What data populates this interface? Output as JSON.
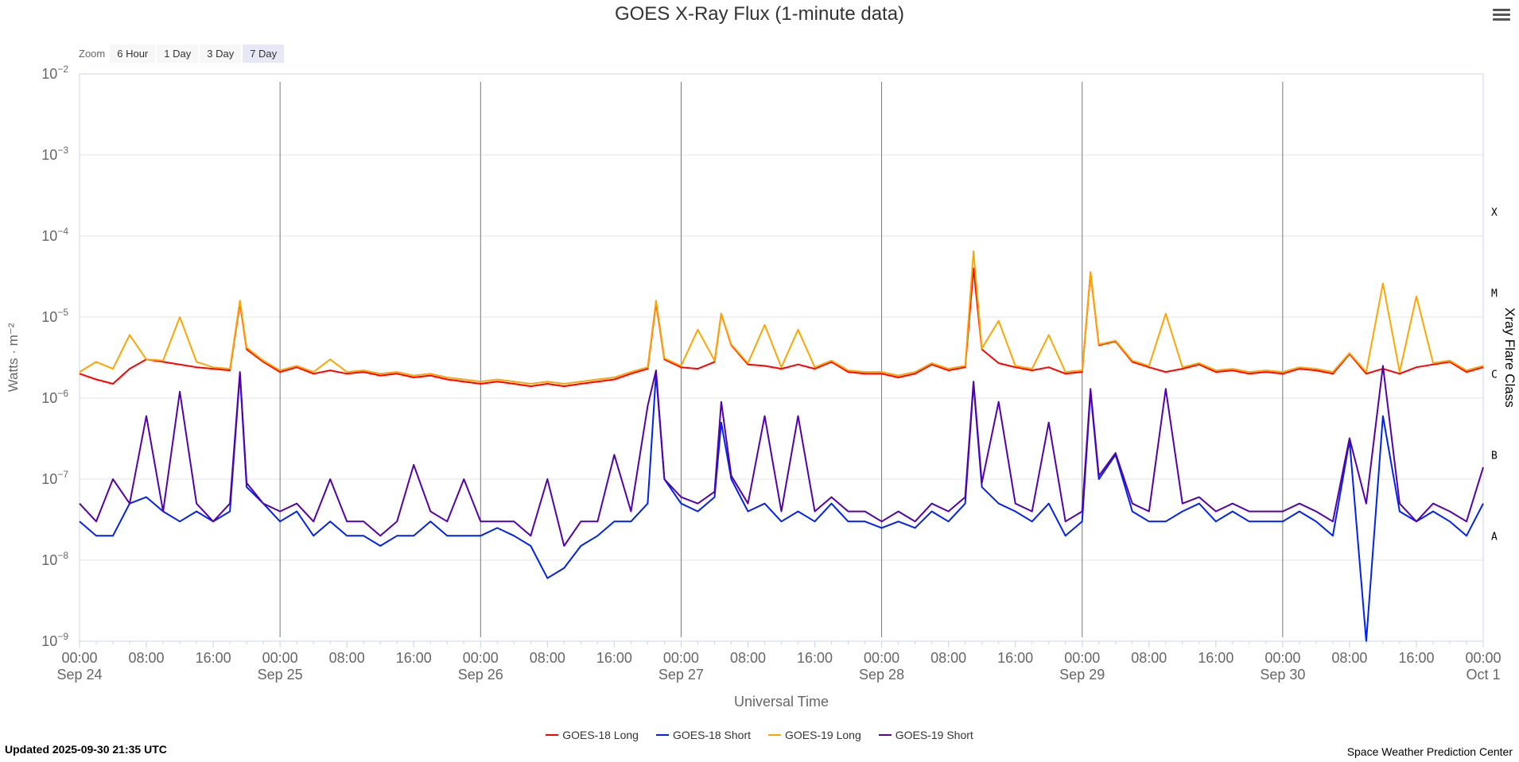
{
  "page": {
    "title": "GOES X-Ray Flux (1-minute data)",
    "updated": "Updated 2025-09-30 21:35 UTC",
    "credit": "Space Weather Prediction Center"
  },
  "zoom": {
    "label": "Zoom",
    "buttons": [
      "6 Hour",
      "1 Day",
      "3 Day",
      "7 Day"
    ],
    "selected": "7 Day"
  },
  "chart_data": {
    "type": "line",
    "title": "GOES X-Ray Flux (1-minute data)",
    "xlabel": "Universal Time",
    "ylabel": "Watts · m⁻²",
    "y2label": "Xray Flare Class",
    "yscale": "log",
    "ylim": [
      1e-09,
      0.01
    ],
    "xlim_hours": [
      0,
      168
    ],
    "y_ticks": [
      {
        "base": "10",
        "exp": "−2",
        "value": 0.01
      },
      {
        "base": "10",
        "exp": "−3",
        "value": 0.001
      },
      {
        "base": "10",
        "exp": "−4",
        "value": 0.0001
      },
      {
        "base": "10",
        "exp": "−5",
        "value": 1e-05
      },
      {
        "base": "10",
        "exp": "−6",
        "value": 1e-06
      },
      {
        "base": "10",
        "exp": "−7",
        "value": 1e-07
      },
      {
        "base": "10",
        "exp": "−8",
        "value": 1e-08
      },
      {
        "base": "10",
        "exp": "−9",
        "value": 1e-09
      }
    ],
    "flare_classes": [
      {
        "label": "X",
        "value": 0.0002
      },
      {
        "label": "M",
        "value": 2e-05
      },
      {
        "label": "C",
        "value": 2e-06
      },
      {
        "label": "B",
        "value": 2e-07
      },
      {
        "label": "A",
        "value": 2e-08
      }
    ],
    "x_ticks": [
      {
        "h": 0,
        "time": "00:00",
        "date": "Sep 24"
      },
      {
        "h": 8,
        "time": "08:00",
        "date": ""
      },
      {
        "h": 16,
        "time": "16:00",
        "date": ""
      },
      {
        "h": 24,
        "time": "00:00",
        "date": "Sep 25"
      },
      {
        "h": 32,
        "time": "08:00",
        "date": ""
      },
      {
        "h": 40,
        "time": "16:00",
        "date": ""
      },
      {
        "h": 48,
        "time": "00:00",
        "date": "Sep 26"
      },
      {
        "h": 56,
        "time": "08:00",
        "date": ""
      },
      {
        "h": 64,
        "time": "16:00",
        "date": ""
      },
      {
        "h": 72,
        "time": "00:00",
        "date": "Sep 27"
      },
      {
        "h": 80,
        "time": "08:00",
        "date": ""
      },
      {
        "h": 88,
        "time": "16:00",
        "date": ""
      },
      {
        "h": 96,
        "time": "00:00",
        "date": "Sep 28"
      },
      {
        "h": 104,
        "time": "08:00",
        "date": ""
      },
      {
        "h": 112,
        "time": "16:00",
        "date": ""
      },
      {
        "h": 120,
        "time": "00:00",
        "date": "Sep 29"
      },
      {
        "h": 128,
        "time": "08:00",
        "date": ""
      },
      {
        "h": 136,
        "time": "16:00",
        "date": ""
      },
      {
        "h": 144,
        "time": "00:00",
        "date": "Sep 30"
      },
      {
        "h": 152,
        "time": "08:00",
        "date": ""
      },
      {
        "h": 160,
        "time": "16:00",
        "date": ""
      },
      {
        "h": 168,
        "time": "00:00",
        "date": "Oct 1"
      }
    ],
    "day_lines_h": [
      24,
      48,
      72,
      96,
      120,
      144
    ],
    "series": [
      {
        "name": "GOES-18 Long",
        "color": "#ff0000",
        "x": [
          0,
          2,
          4,
          6,
          8,
          10,
          12,
          14,
          16,
          18,
          19.2,
          20,
          22,
          24,
          26,
          28,
          30,
          32,
          34,
          36,
          38,
          40,
          42,
          44,
          46,
          48,
          50,
          52,
          54,
          56,
          58,
          60,
          62,
          64,
          66,
          68,
          69,
          70,
          72,
          74,
          76,
          76.8,
          78,
          80,
          82,
          84,
          86,
          88,
          90,
          92,
          94,
          96,
          98,
          100,
          102,
          104,
          106,
          107,
          108,
          110,
          112,
          114,
          116,
          118,
          120,
          121,
          122,
          124,
          126,
          128,
          130,
          132,
          134,
          136,
          138,
          140,
          142,
          144,
          146,
          148,
          150,
          152,
          154,
          156,
          158,
          160,
          162,
          164,
          166,
          168
        ],
        "y": [
          2e-06,
          1.7e-06,
          1.5e-06,
          2.3e-06,
          3e-06,
          2.8e-06,
          2.6e-06,
          2.4e-06,
          2.3e-06,
          2.2e-06,
          1.5e-05,
          4e-06,
          2.8e-06,
          2.1e-06,
          2.4e-06,
          2e-06,
          2.2e-06,
          2e-06,
          2.1e-06,
          1.9e-06,
          2e-06,
          1.8e-06,
          1.9e-06,
          1.7e-06,
          1.6e-06,
          1.5e-06,
          1.6e-06,
          1.5e-06,
          1.4e-06,
          1.5e-06,
          1.4e-06,
          1.5e-06,
          1.6e-06,
          1.7e-06,
          2e-06,
          2.3e-06,
          1.5e-05,
          3e-06,
          2.4e-06,
          2.3e-06,
          2.8e-06,
          1.1e-05,
          4.5e-06,
          2.6e-06,
          2.5e-06,
          2.3e-06,
          2.6e-06,
          2.3e-06,
          2.8e-06,
          2.1e-06,
          2e-06,
          2e-06,
          1.8e-06,
          2e-06,
          2.6e-06,
          2.2e-06,
          2.4e-06,
          4e-05,
          4e-06,
          2.7e-06,
          2.4e-06,
          2.2e-06,
          2.4e-06,
          2e-06,
          2.1e-06,
          3.5e-05,
          4.5e-06,
          5e-06,
          2.8e-06,
          2.4e-06,
          2.1e-06,
          2.3e-06,
          2.6e-06,
          2.1e-06,
          2.2e-06,
          2e-06,
          2.1e-06,
          2e-06,
          2.3e-06,
          2.2e-06,
          2e-06,
          3.5e-06,
          2e-06,
          2.3e-06,
          2e-06,
          2.4e-06,
          2.6e-06,
          2.8e-06,
          2.1e-06,
          2.4e-06
        ]
      },
      {
        "name": "GOES-18 Short",
        "color": "#0022ee",
        "x": [
          0,
          2,
          4,
          6,
          8,
          10,
          12,
          14,
          16,
          18,
          19.2,
          20,
          22,
          24,
          26,
          28,
          30,
          32,
          34,
          36,
          38,
          40,
          42,
          44,
          46,
          48,
          50,
          52,
          54,
          56,
          58,
          60,
          62,
          64,
          66,
          68,
          69,
          70,
          72,
          74,
          76,
          76.8,
          78,
          80,
          82,
          84,
          86,
          88,
          90,
          92,
          94,
          96,
          98,
          100,
          102,
          104,
          106,
          107,
          108,
          110,
          112,
          114,
          116,
          118,
          120,
          121,
          122,
          124,
          126,
          128,
          130,
          132,
          134,
          136,
          138,
          140,
          142,
          144,
          146,
          148,
          150,
          152,
          154,
          156,
          158,
          160,
          162,
          164,
          166,
          168
        ],
        "y": [
          3e-08,
          2e-08,
          2e-08,
          5e-08,
          6e-08,
          4e-08,
          3e-08,
          4e-08,
          3e-08,
          4e-08,
          2e-06,
          8e-08,
          5e-08,
          3e-08,
          4e-08,
          2e-08,
          3e-08,
          2e-08,
          2e-08,
          1.5e-08,
          2e-08,
          2e-08,
          3e-08,
          2e-08,
          2e-08,
          2e-08,
          2.5e-08,
          2e-08,
          1.5e-08,
          6e-09,
          8e-09,
          1.5e-08,
          2e-08,
          3e-08,
          3e-08,
          5e-08,
          2e-06,
          1e-07,
          5e-08,
          4e-08,
          6e-08,
          5e-07,
          1e-07,
          4e-08,
          5e-08,
          3e-08,
          4e-08,
          3e-08,
          5e-08,
          3e-08,
          3e-08,
          2.5e-08,
          3e-08,
          2.5e-08,
          4e-08,
          3e-08,
          5e-08,
          1.5e-06,
          8e-08,
          5e-08,
          4e-08,
          3e-08,
          5e-08,
          2e-08,
          3e-08,
          1.2e-06,
          1e-07,
          2e-07,
          4e-08,
          3e-08,
          3e-08,
          4e-08,
          5e-08,
          3e-08,
          4e-08,
          3e-08,
          3e-08,
          3e-08,
          4e-08,
          3e-08,
          2e-08,
          3e-07,
          1e-09,
          6e-07,
          4e-08,
          3e-08,
          4e-08,
          3e-08,
          2e-08,
          5e-08
        ]
      },
      {
        "name": "GOES-19 Long",
        "color": "#ffa500",
        "x": [
          0,
          2,
          4,
          6,
          8,
          10,
          12,
          14,
          16,
          18,
          19.2,
          20,
          22,
          24,
          26,
          28,
          30,
          32,
          34,
          36,
          38,
          40,
          42,
          44,
          46,
          48,
          50,
          52,
          54,
          56,
          58,
          60,
          62,
          64,
          66,
          68,
          69,
          70,
          72,
          74,
          76,
          76.8,
          78,
          80,
          82,
          84,
          86,
          88,
          90,
          92,
          94,
          96,
          98,
          100,
          102,
          104,
          106,
          107,
          108,
          110,
          112,
          114,
          116,
          118,
          120,
          121,
          122,
          124,
          126,
          128,
          130,
          132,
          134,
          136,
          138,
          140,
          142,
          144,
          146,
          148,
          150,
          152,
          154,
          156,
          158,
          160,
          162,
          164,
          166,
          168
        ],
        "y": [
          2.1e-06,
          2.8e-06,
          2.3e-06,
          6e-06,
          3e-06,
          2.9e-06,
          1e-05,
          2.8e-06,
          2.4e-06,
          2.3e-06,
          1.6e-05,
          4.2e-06,
          2.9e-06,
          2.2e-06,
          2.5e-06,
          2.1e-06,
          3e-06,
          2.1e-06,
          2.2e-06,
          2e-06,
          2.1e-06,
          1.9e-06,
          2e-06,
          1.8e-06,
          1.7e-06,
          1.6e-06,
          1.7e-06,
          1.6e-06,
          1.5e-06,
          1.6e-06,
          1.5e-06,
          1.6e-06,
          1.7e-06,
          1.8e-06,
          2.1e-06,
          2.4e-06,
          1.6e-05,
          3.1e-06,
          2.5e-06,
          7e-06,
          2.9e-06,
          1.1e-05,
          4.6e-06,
          2.7e-06,
          8e-06,
          2.4e-06,
          7e-06,
          2.4e-06,
          2.9e-06,
          2.2e-06,
          2.1e-06,
          2.1e-06,
          1.9e-06,
          2.1e-06,
          2.7e-06,
          2.3e-06,
          2.5e-06,
          6.5e-05,
          4.1e-06,
          9e-06,
          2.5e-06,
          2.3e-06,
          6e-06,
          2.1e-06,
          2.2e-06,
          3.6e-05,
          4.6e-06,
          5.1e-06,
          2.9e-06,
          2.5e-06,
          1.1e-05,
          2.4e-06,
          2.7e-06,
          2.2e-06,
          2.3e-06,
          2.1e-06,
          2.2e-06,
          2.1e-06,
          2.4e-06,
          2.3e-06,
          2.1e-06,
          3.6e-06,
          2.1e-06,
          2.6e-05,
          2.1e-06,
          1.8e-05,
          2.7e-06,
          2.9e-06,
          2.2e-06,
          2.5e-06
        ]
      },
      {
        "name": "GOES-19 Short",
        "color": "#5500aa",
        "x": [
          0,
          2,
          4,
          6,
          8,
          10,
          12,
          14,
          16,
          18,
          19.2,
          20,
          22,
          24,
          26,
          28,
          30,
          32,
          34,
          36,
          38,
          40,
          42,
          44,
          46,
          48,
          50,
          52,
          54,
          56,
          58,
          60,
          62,
          64,
          66,
          68,
          69,
          70,
          72,
          74,
          76,
          76.8,
          78,
          80,
          82,
          84,
          86,
          88,
          90,
          92,
          94,
          96,
          98,
          100,
          102,
          104,
          106,
          107,
          108,
          110,
          112,
          114,
          116,
          118,
          120,
          121,
          122,
          124,
          126,
          128,
          130,
          132,
          134,
          136,
          138,
          140,
          142,
          144,
          146,
          148,
          150,
          152,
          154,
          156,
          158,
          160,
          162,
          164,
          166,
          168
        ],
        "y": [
          5e-08,
          3e-08,
          1e-07,
          5e-08,
          6e-07,
          4e-08,
          1.2e-06,
          5e-08,
          3e-08,
          5e-08,
          2.1e-06,
          9e-08,
          5e-08,
          4e-08,
          5e-08,
          3e-08,
          1e-07,
          3e-08,
          3e-08,
          2e-08,
          3e-08,
          1.5e-07,
          4e-08,
          3e-08,
          1e-07,
          3e-08,
          3e-08,
          3e-08,
          2e-08,
          1e-07,
          1.5e-08,
          3e-08,
          3e-08,
          2e-07,
          4e-08,
          8e-07,
          2.2e-06,
          1e-07,
          6e-08,
          5e-08,
          7e-08,
          9e-07,
          1.1e-07,
          5e-08,
          6e-07,
          4e-08,
          6e-07,
          4e-08,
          6e-08,
          4e-08,
          4e-08,
          3e-08,
          4e-08,
          3e-08,
          5e-08,
          4e-08,
          6e-08,
          1.6e-06,
          9e-08,
          9e-07,
          5e-08,
          4e-08,
          5e-07,
          3e-08,
          4e-08,
          1.3e-06,
          1.1e-07,
          2.1e-07,
          5e-08,
          4e-08,
          1.3e-06,
          5e-08,
          6e-08,
          4e-08,
          5e-08,
          4e-08,
          4e-08,
          4e-08,
          5e-08,
          4e-08,
          3e-08,
          3.2e-07,
          5e-08,
          2.5e-06,
          5e-08,
          3e-08,
          5e-08,
          4e-08,
          3e-08,
          1.4e-07
        ]
      }
    ],
    "legend_position": "bottom-center",
    "grid": true
  }
}
